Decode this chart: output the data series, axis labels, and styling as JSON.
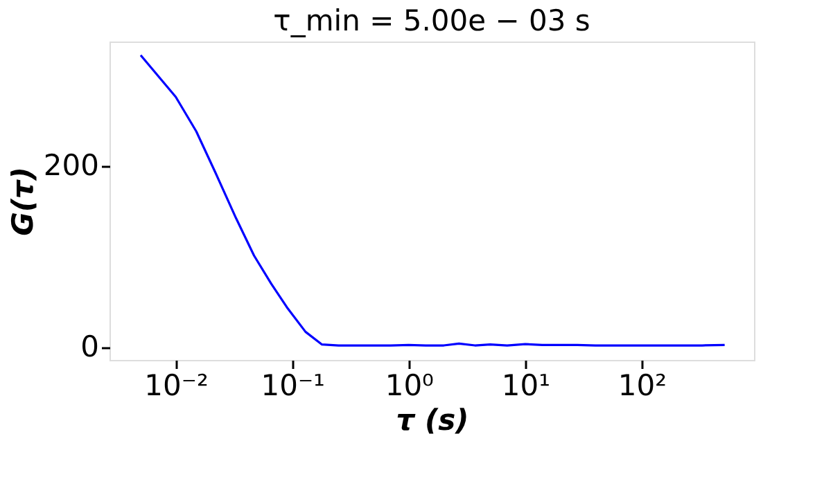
{
  "chart_data": {
    "type": "line",
    "title": "τ_min = 5.00e − 03 s",
    "xlabel": "τ (s)",
    "ylabel": "G(τ)",
    "log": "x",
    "grid": false,
    "marker": "none",
    "line_style": "solid",
    "x": [
      0.005,
      0.01,
      0.015,
      0.022,
      0.033,
      0.047,
      0.066,
      0.09,
      0.13,
      0.18,
      0.25,
      0.35,
      0.5,
      0.7,
      1,
      1.4,
      2,
      2.7,
      3.7,
      5,
      7,
      10,
      14,
      20,
      28,
      40,
      55,
      80,
      110,
      160,
      230,
      330,
      515
    ],
    "series": [
      {
        "color": "#0000ff",
        "values": [
          322,
          276,
          238,
          192,
          142,
          101,
          70,
          44,
          17,
          3,
          2,
          2,
          2,
          2,
          2.5,
          2,
          2,
          4,
          2,
          3,
          2,
          3.5,
          2.5,
          2.5,
          2.5,
          2,
          2,
          2,
          2,
          2,
          2,
          2,
          2.5
        ]
      }
    ],
    "xlim": [
      0.0027,
      920
    ],
    "ylim": [
      -14,
      337
    ],
    "xticks": [
      {
        "value": 0.01,
        "label": "10⁻²"
      },
      {
        "value": 0.1,
        "label": "10⁻¹"
      },
      {
        "value": 1,
        "label": "10⁰"
      },
      {
        "value": 10,
        "label": "10¹"
      },
      {
        "value": 100,
        "label": "10²"
      }
    ],
    "yticks": [
      0,
      200
    ]
  }
}
